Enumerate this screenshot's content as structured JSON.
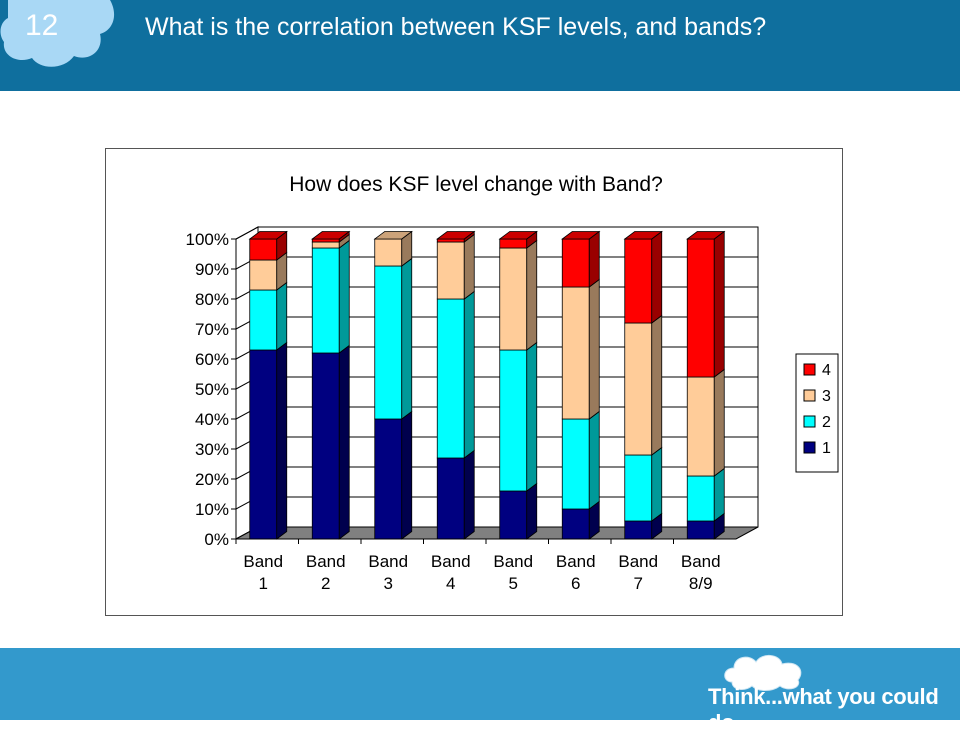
{
  "header": {
    "slide_number": "12",
    "title": "What is the correlation between KSF levels, and bands?"
  },
  "footer": {
    "tagline": "Think...what you could do"
  },
  "colors": {
    "header_bg": "#0f6f9e",
    "footer_bg": "#3399cc",
    "level_1": "#000080",
    "level_2": "#00ffff",
    "level_3": "#ffcc99",
    "level_4": "#ff0000"
  },
  "chart_data": {
    "type": "bar",
    "stacked": true,
    "percent_stacked": true,
    "three_d": true,
    "title": "How does KSF level change with Band?",
    "xlabel": "",
    "ylabel": "",
    "ylim": [
      0,
      100
    ],
    "y_ticks": [
      "0%",
      "10%",
      "20%",
      "30%",
      "40%",
      "50%",
      "60%",
      "70%",
      "80%",
      "90%",
      "100%"
    ],
    "categories": [
      [
        "Band",
        "1"
      ],
      [
        "Band",
        "2"
      ],
      [
        "Band",
        "3"
      ],
      [
        "Band",
        "4"
      ],
      [
        "Band",
        "5"
      ],
      [
        "Band",
        "6"
      ],
      [
        "Band",
        "7"
      ],
      [
        "Band",
        "8/9"
      ]
    ],
    "series": [
      {
        "name": "1",
        "color": "#000080",
        "values": [
          63,
          62,
          40,
          27,
          16,
          10,
          6,
          6
        ]
      },
      {
        "name": "2",
        "color": "#00ffff",
        "values": [
          20,
          35,
          51,
          53,
          47,
          30,
          22,
          15
        ]
      },
      {
        "name": "3",
        "color": "#ffcc99",
        "values": [
          10,
          2,
          9,
          19,
          34,
          44,
          44,
          33
        ]
      },
      {
        "name": "4",
        "color": "#ff0000",
        "values": [
          7,
          1,
          0,
          1,
          3,
          16,
          28,
          46
        ]
      }
    ],
    "legend_position": "right",
    "legend_order": [
      "4",
      "3",
      "2",
      "1"
    ],
    "grid": true
  }
}
